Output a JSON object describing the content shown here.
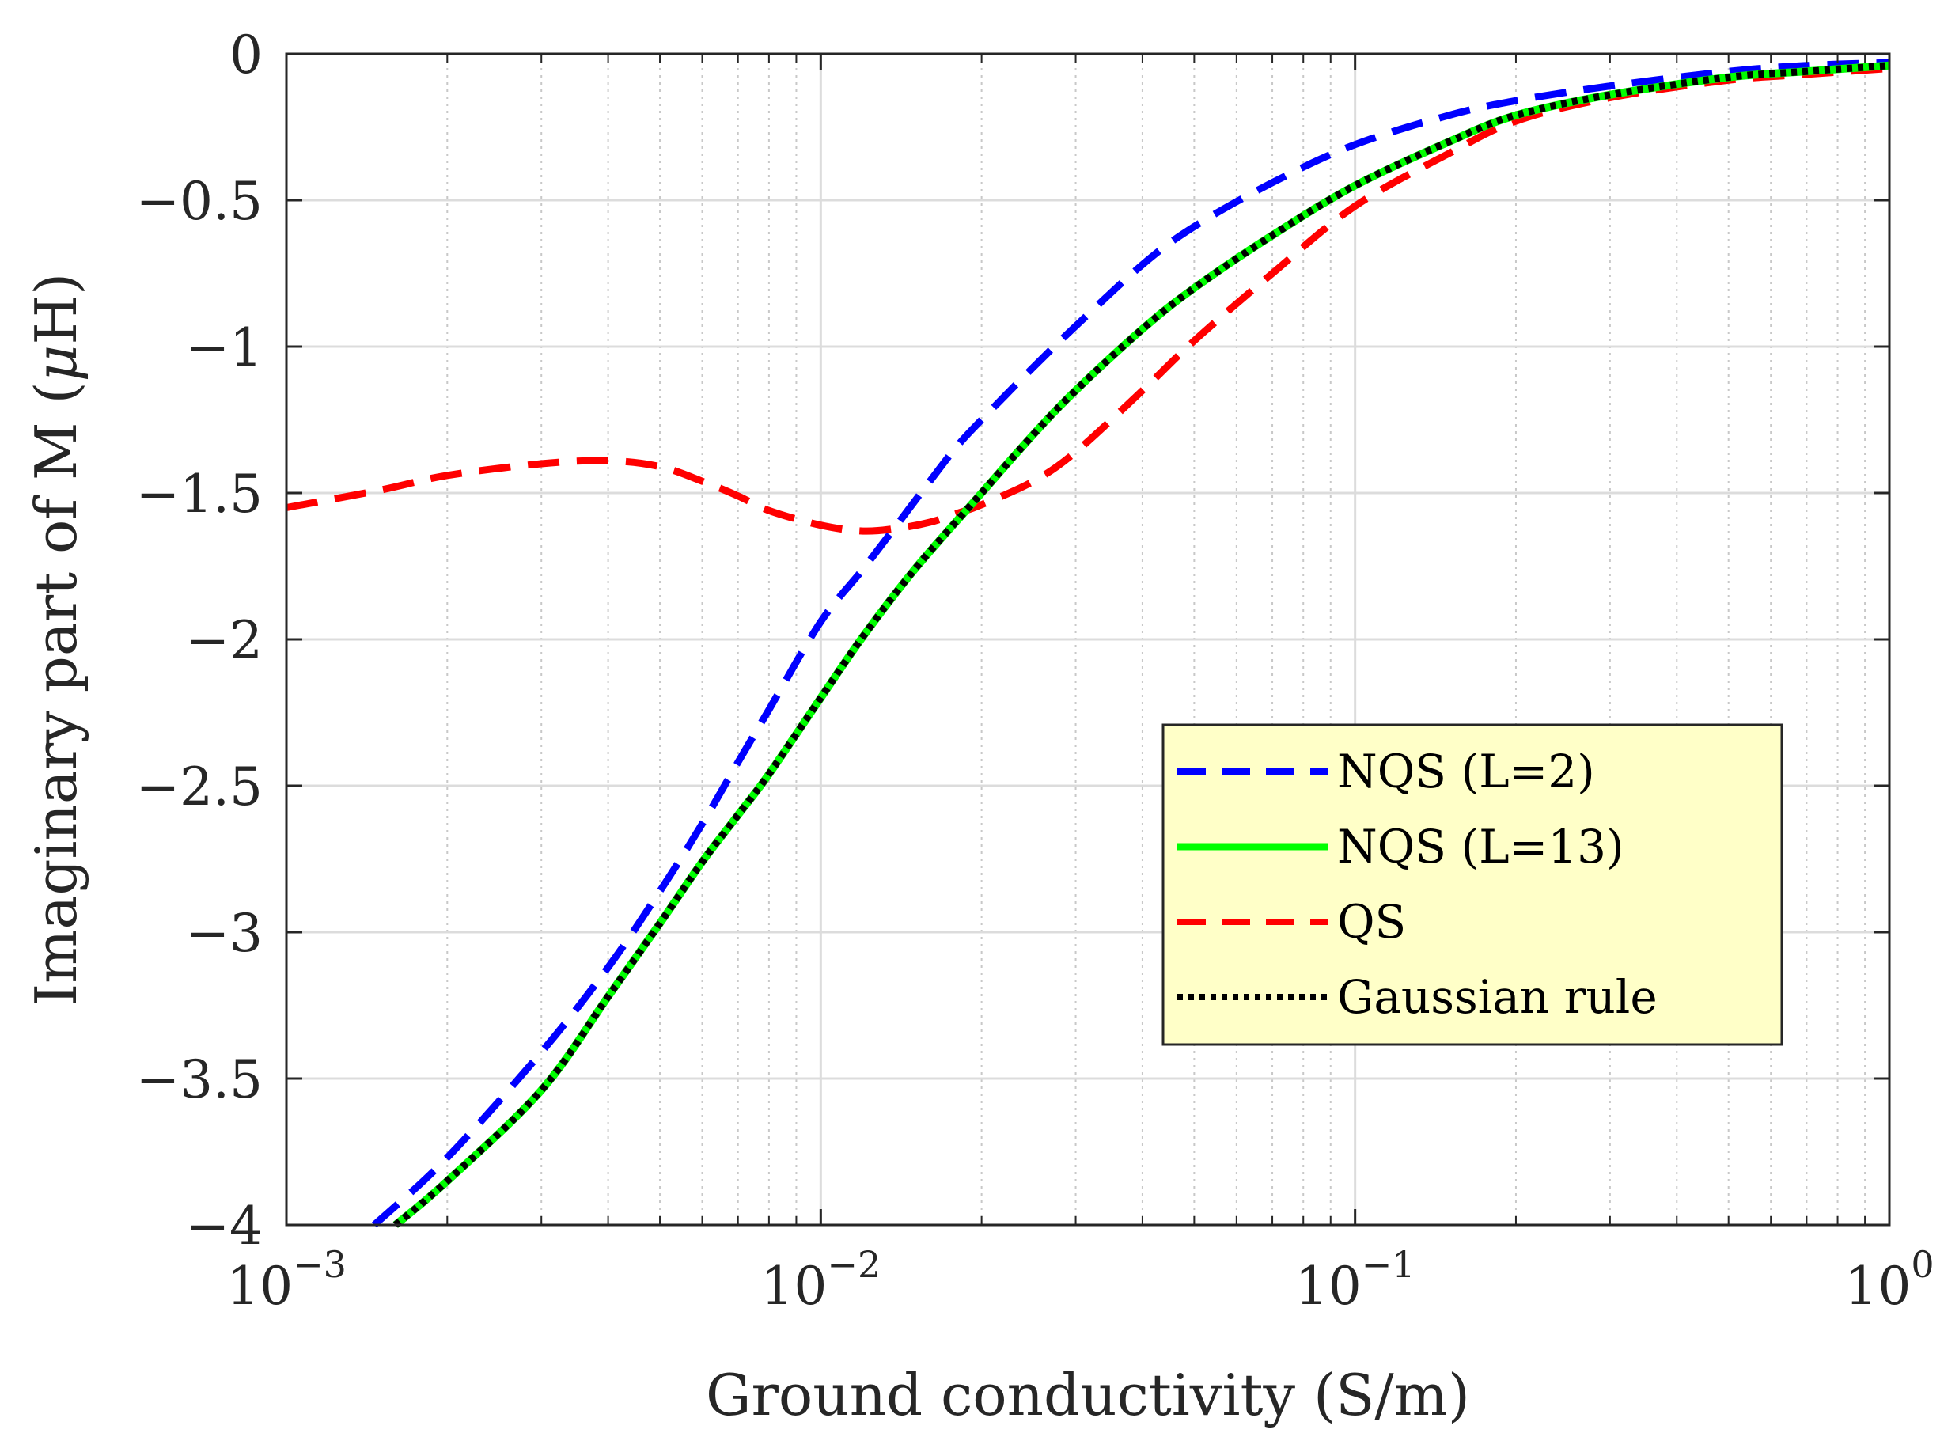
{
  "chart_data": {
    "type": "line",
    "x_scale": "log",
    "xlabel": "Ground conductivity (S/m)",
    "ylabel_prefix": "Imaginary part of M (",
    "ylabel_mu": "μ",
    "ylabel_suffix": "H)",
    "xlim": [
      0.001,
      1
    ],
    "ylim": [
      -4,
      0
    ],
    "grid": true,
    "legend_position": "center-right",
    "x_ticks": [
      {
        "value": 0.001,
        "base": "10",
        "exp": "−3"
      },
      {
        "value": 0.01,
        "base": "10",
        "exp": "−2"
      },
      {
        "value": 0.1,
        "base": "10",
        "exp": "−1"
      },
      {
        "value": 1,
        "base": "10",
        "exp": "0"
      }
    ],
    "y_ticks": [
      {
        "value": 0,
        "label": "0"
      },
      {
        "value": -0.5,
        "label": "−0.5"
      },
      {
        "value": -1,
        "label": "−1"
      },
      {
        "value": -1.5,
        "label": "−1.5"
      },
      {
        "value": -2,
        "label": "−2"
      },
      {
        "value": -2.5,
        "label": "−2.5"
      },
      {
        "value": -3,
        "label": "−3"
      },
      {
        "value": -3.5,
        "label": "−3.5"
      },
      {
        "value": -4,
        "label": "−4"
      }
    ],
    "series": [
      {
        "name": "NQS (L=2)",
        "color": "#0000ff",
        "style": "dashed",
        "x": [
          0.00146,
          0.002,
          0.003,
          0.004,
          0.005,
          0.006,
          0.007,
          0.008,
          0.01,
          0.012,
          0.014,
          0.016,
          0.018,
          0.02,
          0.025,
          0.03,
          0.04,
          0.05,
          0.07,
          0.1,
          0.15,
          0.2,
          0.3,
          0.5,
          0.7,
          1.0
        ],
        "y": [
          -4.0,
          -3.77,
          -3.41,
          -3.12,
          -2.86,
          -2.63,
          -2.42,
          -2.24,
          -1.94,
          -1.76,
          -1.6,
          -1.46,
          -1.34,
          -1.25,
          -1.07,
          -0.93,
          -0.72,
          -0.59,
          -0.44,
          -0.31,
          -0.21,
          -0.16,
          -0.11,
          -0.06,
          -0.04,
          -0.03
        ]
      },
      {
        "name": "NQS (L=13)",
        "color": "#00ff00",
        "style": "solid",
        "x": [
          0.0016,
          0.002,
          0.003,
          0.004,
          0.005,
          0.006,
          0.007,
          0.008,
          0.01,
          0.012,
          0.015,
          0.02,
          0.025,
          0.03,
          0.04,
          0.05,
          0.07,
          0.1,
          0.15,
          0.2,
          0.3,
          0.5,
          0.7,
          1.0
        ],
        "y": [
          -4.0,
          -3.85,
          -3.54,
          -3.22,
          -2.97,
          -2.76,
          -2.6,
          -2.46,
          -2.2,
          -1.99,
          -1.76,
          -1.5,
          -1.3,
          -1.15,
          -0.94,
          -0.8,
          -0.62,
          -0.45,
          -0.3,
          -0.21,
          -0.14,
          -0.08,
          -0.06,
          -0.04
        ]
      },
      {
        "name": "QS",
        "color": "#ff0000",
        "style": "dashed",
        "x": [
          0.001,
          0.0015,
          0.002,
          0.003,
          0.004,
          0.005,
          0.006,
          0.007,
          0.008,
          0.01,
          0.012,
          0.014,
          0.016,
          0.018,
          0.02,
          0.025,
          0.03,
          0.04,
          0.05,
          0.07,
          0.1,
          0.15,
          0.2,
          0.3,
          0.5,
          0.7,
          1.0
        ],
        "y": [
          -1.55,
          -1.49,
          -1.44,
          -1.4,
          -1.39,
          -1.41,
          -1.46,
          -1.51,
          -1.56,
          -1.61,
          -1.63,
          -1.62,
          -1.6,
          -1.57,
          -1.54,
          -1.46,
          -1.36,
          -1.15,
          -0.98,
          -0.75,
          -0.52,
          -0.34,
          -0.23,
          -0.15,
          -0.09,
          -0.07,
          -0.05
        ]
      },
      {
        "name": "Gaussian rule",
        "color": "#000000",
        "style": "dotted",
        "x": [
          0.0016,
          0.002,
          0.003,
          0.004,
          0.005,
          0.006,
          0.007,
          0.008,
          0.01,
          0.012,
          0.015,
          0.02,
          0.025,
          0.03,
          0.04,
          0.05,
          0.07,
          0.1,
          0.15,
          0.2,
          0.3,
          0.5,
          0.7,
          1.0
        ],
        "y": [
          -4.0,
          -3.85,
          -3.54,
          -3.22,
          -2.97,
          -2.76,
          -2.6,
          -2.46,
          -2.2,
          -1.99,
          -1.76,
          -1.5,
          -1.3,
          -1.15,
          -0.94,
          -0.8,
          -0.62,
          -0.45,
          -0.3,
          -0.21,
          -0.14,
          -0.08,
          -0.06,
          -0.04
        ]
      }
    ]
  }
}
